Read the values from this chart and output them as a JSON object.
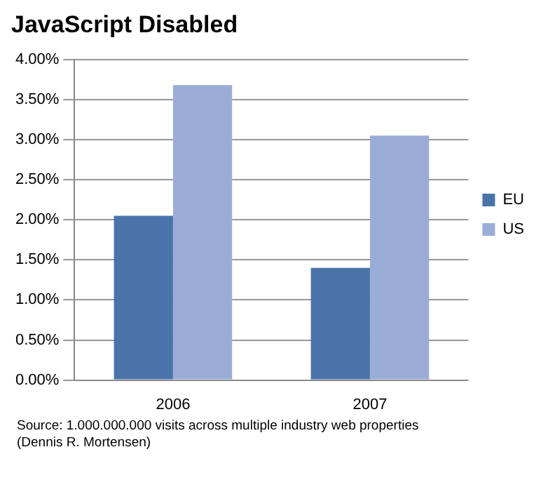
{
  "chart_data": {
    "type": "bar",
    "title": "JavaScript Disabled",
    "categories": [
      "2006",
      "2007"
    ],
    "series": [
      {
        "name": "EU",
        "color": "#4a73aa",
        "values": [
          2.05,
          1.4
        ]
      },
      {
        "name": "US",
        "color": "#9badd6",
        "values": [
          3.68,
          3.05
        ]
      }
    ],
    "ylim": [
      0,
      4
    ],
    "yticks": [
      {
        "value": 0,
        "label": "0.00%"
      },
      {
        "value": 0.5,
        "label": "0.50%"
      },
      {
        "value": 1,
        "label": "1.00%"
      },
      {
        "value": 1.5,
        "label": "1.50%"
      },
      {
        "value": 2,
        "label": "2.00%"
      },
      {
        "value": 2.5,
        "label": "2.50%"
      },
      {
        "value": 3,
        "label": "3.00%"
      },
      {
        "value": 3.5,
        "label": "3.50%"
      },
      {
        "value": 4,
        "label": "4.00%"
      }
    ],
    "grid": "y",
    "legend": "right",
    "annotations": [
      "Source: 1.000.000.000 visits across multiple industry web properties",
      "(Dennis R. Mortensen)"
    ]
  }
}
